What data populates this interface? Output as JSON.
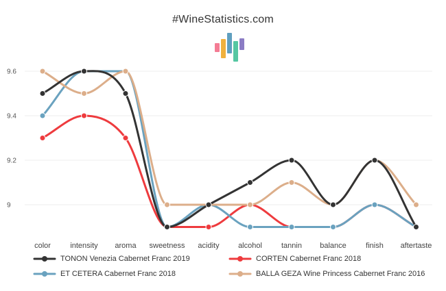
{
  "site_title": "#WineStatistics.com",
  "logo": {
    "name": "bar-logo-icon",
    "colors": [
      "#f47c94",
      "#f0b13e",
      "#5f9fbf",
      "#55c7a2",
      "#8b7cc4"
    ]
  },
  "colors": {
    "grid": "#ececec",
    "axis_text": "#555555"
  },
  "chart_data": {
    "type": "line",
    "title": "#WineStatistics.com",
    "xlabel": "",
    "ylabel": "",
    "categories": [
      "color",
      "intensity",
      "aroma",
      "sweetness",
      "acidity",
      "alcohol",
      "tannin",
      "balance",
      "finish",
      "aftertaste"
    ],
    "ylim": [
      8.88,
      9.68
    ],
    "yticks": [
      9,
      9.2,
      9.4,
      9.6
    ],
    "ytick_labels": [
      "9",
      "9.2",
      "9.4",
      "9.6"
    ],
    "grid": true,
    "legend_position": "bottom",
    "series": [
      {
        "name": "TONON Venezia Cabernet Franc 2019",
        "color": "#333333",
        "values": [
          9.5,
          9.6,
          9.5,
          8.9,
          9.0,
          9.1,
          9.2,
          9.0,
          9.2,
          8.9
        ]
      },
      {
        "name": "CORTEN Cabernet Franc 2018",
        "color": "#ee3b3e",
        "values": [
          9.3,
          9.4,
          9.3,
          8.9,
          8.9,
          9.0,
          8.9,
          8.9,
          9.0,
          8.9
        ]
      },
      {
        "name": "ET CETERA Cabernet Franc 2018",
        "color": "#6aa2bf",
        "values": [
          9.4,
          9.6,
          9.6,
          8.9,
          9.0,
          8.9,
          8.9,
          8.9,
          9.0,
          8.9
        ]
      },
      {
        "name": "BALLA GEZA Wine Princess Cabernet Franc 2016",
        "color": "#dcae8a",
        "values": [
          9.6,
          9.5,
          9.6,
          9.0,
          9.0,
          9.0,
          9.1,
          9.0,
          9.2,
          9.0
        ]
      }
    ]
  }
}
